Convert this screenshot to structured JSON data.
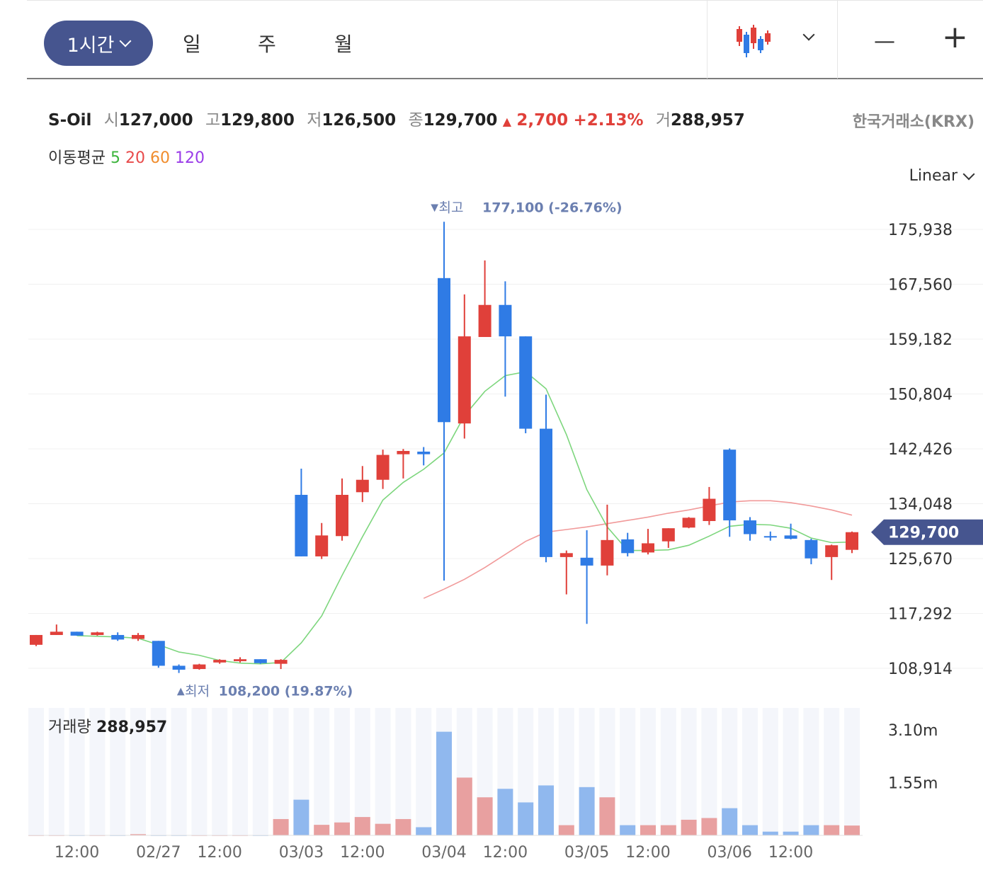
{
  "toolbar": {
    "active_period": "1시간",
    "periods": [
      "일",
      "주",
      "월"
    ],
    "zoom_out": "—",
    "zoom_in": "+"
  },
  "quote": {
    "name": "S-Oil",
    "open_label": "시",
    "open": "127,000",
    "high_label": "고",
    "high": "129,800",
    "low_label": "저",
    "low": "126,500",
    "close_label": "종",
    "close": "129,700",
    "change_symbol": "▲",
    "change": "2,700",
    "change_pct": "+2.13%",
    "volume_label": "거",
    "volume": "288,957",
    "exchange": "한국거래소(KRX)"
  },
  "ma_legend": {
    "label": "이동평균",
    "periods": [
      "5",
      "20",
      "60",
      "120"
    ],
    "colors": [
      "#3cb43c",
      "#e84a4a",
      "#f08c2c",
      "#9a3ce8"
    ]
  },
  "scale_mode": "Linear",
  "colors": {
    "up": "#e0403a",
    "down": "#2f7be5",
    "ma5": "#7dd67d",
    "ma20": "#f19a9a",
    "accent": "#46558f"
  },
  "chart_data": {
    "type": "candlestick",
    "interval": "1h",
    "y_ticks": [
      175938,
      167560,
      159182,
      150804,
      142426,
      134048,
      125670,
      117292,
      108914
    ],
    "y_tick_labels": [
      "175,938",
      "167,560",
      "159,182",
      "150,804",
      "142,426",
      "134,048",
      "125,670",
      "117,292",
      "108,914"
    ],
    "ylim": [
      106500,
      178500
    ],
    "current_price": 129700,
    "current_price_label": "129,700",
    "max_annotation": {
      "marker": "▼",
      "label": "최고",
      "value": "177,100 (-26.76%)",
      "price": 177100,
      "index": 20
    },
    "min_annotation": {
      "marker": "▲",
      "label": "최저",
      "value": "108,200 (19.87%)",
      "price": 108200,
      "index": 7
    },
    "x_labels": [
      {
        "index": 2,
        "label": "12:00"
      },
      {
        "index": 6,
        "label": "02/27"
      },
      {
        "index": 9,
        "label": "12:00"
      },
      {
        "index": 13,
        "label": "03/03"
      },
      {
        "index": 16,
        "label": "12:00"
      },
      {
        "index": 20,
        "label": "03/04"
      },
      {
        "index": 23,
        "label": "12:00"
      },
      {
        "index": 27,
        "label": "03/05"
      },
      {
        "index": 30,
        "label": "12:00"
      },
      {
        "index": 34,
        "label": "03/06"
      },
      {
        "index": 37,
        "label": "12:00"
      }
    ],
    "candles": [
      {
        "o": 112500,
        "h": 114000,
        "l": 112300,
        "c": 114000
      },
      {
        "o": 114000,
        "h": 115600,
        "l": 114000,
        "c": 114500
      },
      {
        "o": 114500,
        "h": 114500,
        "l": 113900,
        "c": 113900
      },
      {
        "o": 114000,
        "h": 114500,
        "l": 113900,
        "c": 114400
      },
      {
        "o": 114000,
        "h": 114400,
        "l": 113100,
        "c": 113300
      },
      {
        "o": 113400,
        "h": 114300,
        "l": 113100,
        "c": 114000
      },
      {
        "o": 113100,
        "h": 113100,
        "l": 109000,
        "c": 109300
      },
      {
        "o": 109300,
        "h": 109500,
        "l": 108200,
        "c": 108700
      },
      {
        "o": 108800,
        "h": 109600,
        "l": 108700,
        "c": 109500
      },
      {
        "o": 109800,
        "h": 110300,
        "l": 109600,
        "c": 110200
      },
      {
        "o": 110000,
        "h": 110600,
        "l": 109800,
        "c": 110300
      },
      {
        "o": 110300,
        "h": 110300,
        "l": 109600,
        "c": 109700
      },
      {
        "o": 109600,
        "h": 110300,
        "l": 108800,
        "c": 110200
      },
      {
        "o": 135400,
        "h": 139400,
        "l": 126000,
        "c": 126000
      },
      {
        "o": 126000,
        "h": 131100,
        "l": 125600,
        "c": 129200
      },
      {
        "o": 129100,
        "h": 137900,
        "l": 128400,
        "c": 135400
      },
      {
        "o": 135800,
        "h": 139800,
        "l": 134300,
        "c": 137700
      },
      {
        "o": 137700,
        "h": 142300,
        "l": 136300,
        "c": 141500
      },
      {
        "o": 141600,
        "h": 142400,
        "l": 137900,
        "c": 142100
      },
      {
        "o": 142000,
        "h": 142700,
        "l": 139900,
        "c": 141600
      },
      {
        "o": 168500,
        "h": 177100,
        "l": 122300,
        "c": 146500
      },
      {
        "o": 146300,
        "h": 166000,
        "l": 144000,
        "c": 159600
      },
      {
        "o": 159500,
        "h": 171200,
        "l": 159500,
        "c": 164400
      },
      {
        "o": 164400,
        "h": 168000,
        "l": 150400,
        "c": 159600
      },
      {
        "o": 159600,
        "h": 159600,
        "l": 144800,
        "c": 145500
      },
      {
        "o": 145500,
        "h": 150700,
        "l": 125100,
        "c": 125900
      },
      {
        "o": 125900,
        "h": 126900,
        "l": 120200,
        "c": 126500
      },
      {
        "o": 125800,
        "h": 130000,
        "l": 115700,
        "c": 124600
      },
      {
        "o": 124600,
        "h": 133900,
        "l": 123100,
        "c": 128500
      },
      {
        "o": 128600,
        "h": 129600,
        "l": 126000,
        "c": 126500
      },
      {
        "o": 126600,
        "h": 130200,
        "l": 126300,
        "c": 128000
      },
      {
        "o": 128300,
        "h": 130300,
        "l": 127300,
        "c": 130300
      },
      {
        "o": 130400,
        "h": 132000,
        "l": 130300,
        "c": 131900
      },
      {
        "o": 131400,
        "h": 136600,
        "l": 130800,
        "c": 134800
      },
      {
        "o": 142300,
        "h": 142500,
        "l": 129000,
        "c": 131500
      },
      {
        "o": 131500,
        "h": 132000,
        "l": 128400,
        "c": 129400
      },
      {
        "o": 129100,
        "h": 129800,
        "l": 128400,
        "c": 129000
      },
      {
        "o": 129200,
        "h": 131000,
        "l": 128600,
        "c": 128700
      },
      {
        "o": 128500,
        "h": 128700,
        "l": 124800,
        "c": 125700
      },
      {
        "o": 125900,
        "h": 127800,
        "l": 122400,
        "c": 127700
      },
      {
        "o": 127000,
        "h": 129800,
        "l": 126500,
        "c": 129700
      }
    ],
    "ma5": [
      {
        "i": 2,
        "v": 113900
      },
      {
        "i": 3,
        "v": 113800
      },
      {
        "i": 4,
        "v": 113700
      },
      {
        "i": 5,
        "v": 113500
      },
      {
        "i": 6,
        "v": 112500
      },
      {
        "i": 7,
        "v": 111400
      },
      {
        "i": 8,
        "v": 110900
      },
      {
        "i": 9,
        "v": 110100
      },
      {
        "i": 10,
        "v": 109700
      },
      {
        "i": 11,
        "v": 109600
      },
      {
        "i": 12,
        "v": 109800
      },
      {
        "i": 13,
        "v": 112800
      },
      {
        "i": 14,
        "v": 116900
      },
      {
        "i": 15,
        "v": 123100
      },
      {
        "i": 16,
        "v": 129000
      },
      {
        "i": 17,
        "v": 134600
      },
      {
        "i": 18,
        "v": 137300
      },
      {
        "i": 19,
        "v": 139300
      },
      {
        "i": 20,
        "v": 141800
      },
      {
        "i": 21,
        "v": 147500
      },
      {
        "i": 22,
        "v": 151200
      },
      {
        "i": 23,
        "v": 153600
      },
      {
        "i": 24,
        "v": 154200
      },
      {
        "i": 25,
        "v": 151600
      },
      {
        "i": 26,
        "v": 144600
      },
      {
        "i": 27,
        "v": 136200
      },
      {
        "i": 28,
        "v": 130500
      },
      {
        "i": 29,
        "v": 126900
      },
      {
        "i": 30,
        "v": 126900
      },
      {
        "i": 31,
        "v": 127000
      },
      {
        "i": 32,
        "v": 127700
      },
      {
        "i": 33,
        "v": 129100
      },
      {
        "i": 34,
        "v": 130600
      },
      {
        "i": 35,
        "v": 130900
      },
      {
        "i": 36,
        "v": 130800
      },
      {
        "i": 37,
        "v": 130300
      },
      {
        "i": 38,
        "v": 128800
      },
      {
        "i": 39,
        "v": 128100
      },
      {
        "i": 40,
        "v": 128200
      }
    ],
    "ma20": [
      {
        "i": 19,
        "v": 119600
      },
      {
        "i": 20,
        "v": 121000
      },
      {
        "i": 21,
        "v": 122500
      },
      {
        "i": 22,
        "v": 124300
      },
      {
        "i": 23,
        "v": 126300
      },
      {
        "i": 24,
        "v": 128300
      },
      {
        "i": 25,
        "v": 129700
      },
      {
        "i": 26,
        "v": 130100
      },
      {
        "i": 27,
        "v": 130500
      },
      {
        "i": 28,
        "v": 131000
      },
      {
        "i": 29,
        "v": 131500
      },
      {
        "i": 30,
        "v": 132000
      },
      {
        "i": 31,
        "v": 132600
      },
      {
        "i": 32,
        "v": 133100
      },
      {
        "i": 33,
        "v": 133700
      },
      {
        "i": 34,
        "v": 134300
      },
      {
        "i": 35,
        "v": 134500
      },
      {
        "i": 36,
        "v": 134500
      },
      {
        "i": 37,
        "v": 134200
      },
      {
        "i": 38,
        "v": 133700
      },
      {
        "i": 39,
        "v": 133100
      },
      {
        "i": 40,
        "v": 132300
      }
    ],
    "volume": {
      "label": "거래량",
      "value": "288,957",
      "y_ticks": [
        3100000,
        1550000
      ],
      "y_tick_labels": [
        "3.10m",
        "1.55m"
      ],
      "ylim": [
        0,
        3750000
      ],
      "bars": [
        5000,
        5000,
        5000,
        5000,
        5000,
        35000,
        5000,
        5000,
        5000,
        5000,
        5000,
        5000,
        480000,
        1050000,
        310000,
        380000,
        540000,
        340000,
        480000,
        240000,
        3050000,
        1700000,
        1120000,
        1370000,
        970000,
        1470000,
        300000,
        1420000,
        1120000,
        300000,
        300000,
        300000,
        460000,
        510000,
        800000,
        300000,
        110000,
        110000,
        300000,
        300000,
        288957
      ]
    }
  }
}
